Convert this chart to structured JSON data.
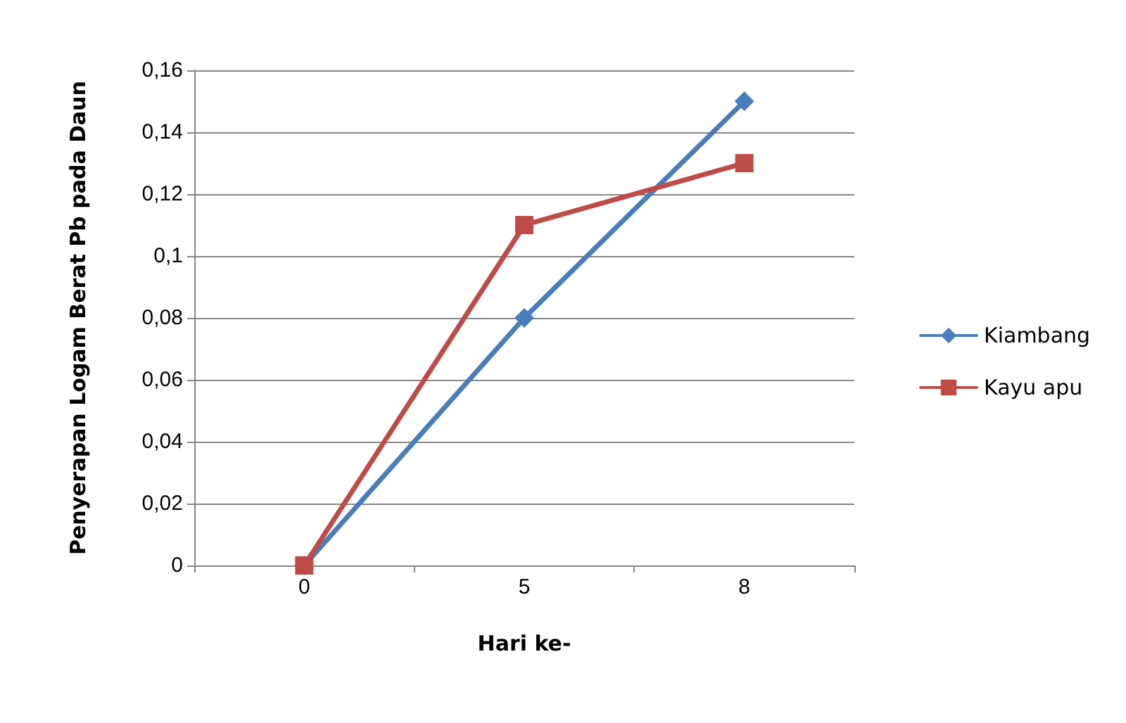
{
  "chart_data": {
    "type": "line",
    "xlabel": "Hari ke-",
    "ylabel": "Penyerapan Logam Berat Pb pada Daun",
    "categories": [
      "0",
      "5",
      "8"
    ],
    "series": [
      {
        "name": "Kiambang",
        "color": "#4a7ebb",
        "marker": "diamond",
        "values": [
          0,
          0.08,
          0.15
        ]
      },
      {
        "name": "Kayu apu",
        "color": "#be4b48",
        "marker": "square",
        "values": [
          0,
          0.11,
          0.13
        ]
      }
    ],
    "ylim": [
      0,
      0.16
    ],
    "yticks": [
      {
        "value": 0,
        "label": "0"
      },
      {
        "value": 0.02,
        "label": "0,02"
      },
      {
        "value": 0.04,
        "label": "0,04"
      },
      {
        "value": 0.06,
        "label": "0,06"
      },
      {
        "value": 0.08,
        "label": "0,08"
      },
      {
        "value": 0.1,
        "label": "0,1"
      },
      {
        "value": 0.12,
        "label": "0,12"
      },
      {
        "value": 0.14,
        "label": "0,14"
      },
      {
        "value": 0.16,
        "label": "0,16"
      }
    ],
    "grid": "y",
    "legend": "right",
    "line_style": "solid"
  }
}
